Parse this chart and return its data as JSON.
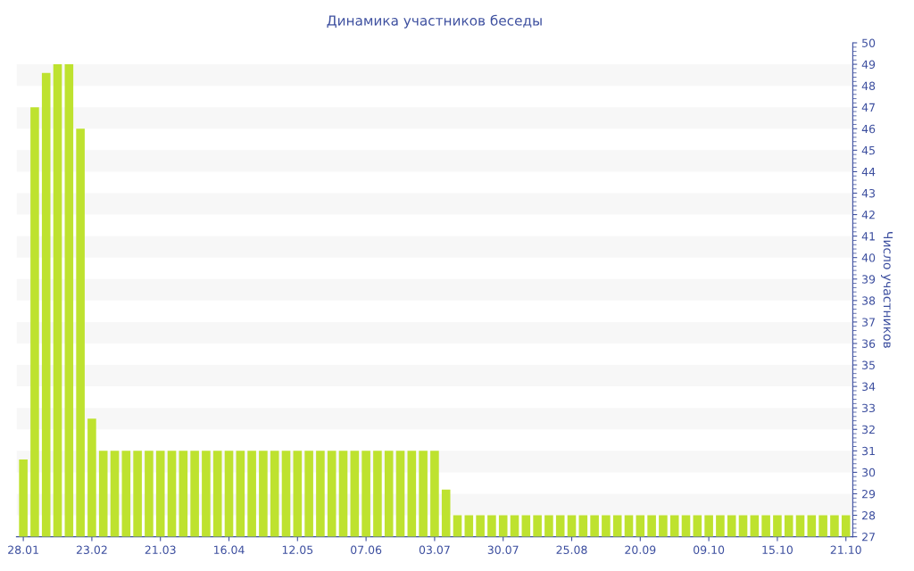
{
  "chart_data": {
    "type": "bar",
    "title": "Динамика участников беседы",
    "ylabel": "Число участников",
    "categories": [
      "28.01",
      null,
      null,
      null,
      null,
      null,
      "23.02",
      null,
      null,
      null,
      null,
      null,
      "21.03",
      null,
      null,
      null,
      null,
      null,
      "16.04",
      null,
      null,
      null,
      null,
      null,
      "12.05",
      null,
      null,
      null,
      null,
      null,
      "07.06",
      null,
      null,
      null,
      null,
      null,
      "03.07",
      null,
      null,
      null,
      null,
      null,
      "30.07",
      null,
      null,
      null,
      null,
      null,
      "25.08",
      null,
      null,
      null,
      null,
      null,
      "20.09",
      null,
      null,
      null,
      null,
      null,
      "09.10",
      null,
      null,
      null,
      null,
      null,
      "15.10",
      null,
      null,
      null,
      null,
      null,
      "21.10"
    ],
    "values": [
      30.6,
      47,
      48.6,
      49,
      49,
      46,
      32.5,
      31,
      31,
      31,
      31,
      31,
      31,
      31,
      31,
      31,
      31,
      31,
      31,
      31,
      31,
      31,
      31,
      31,
      31,
      31,
      31,
      31,
      31,
      31,
      31,
      31,
      31,
      31,
      31,
      31,
      31,
      29.2,
      28,
      28,
      28,
      28,
      28,
      28,
      28,
      28,
      28,
      28,
      28,
      28,
      28,
      28,
      28,
      28,
      28,
      28,
      28,
      28,
      28,
      28,
      28,
      28,
      28,
      28,
      28,
      28,
      28,
      28,
      28,
      28,
      28,
      28,
      28
    ],
    "color": "#bee22f",
    "ylim": [
      27,
      50
    ],
    "yticks": [
      27,
      28,
      29,
      30,
      31,
      32,
      33,
      34,
      35,
      36,
      37,
      38,
      39,
      40,
      41,
      42,
      43,
      44,
      45,
      46,
      47,
      48,
      49,
      50
    ],
    "bands": [
      {
        "axis": "y",
        "from": 28,
        "to": 29,
        "color": "#f7f7f7"
      },
      {
        "axis": "y",
        "from": 30,
        "to": 31,
        "color": "#f7f7f7"
      },
      {
        "axis": "y",
        "from": 32,
        "to": 33,
        "color": "#f7f7f7"
      },
      {
        "axis": "y",
        "from": 34,
        "to": 35,
        "color": "#f7f7f7"
      },
      {
        "axis": "y",
        "from": 36,
        "to": 37,
        "color": "#f7f7f7"
      },
      {
        "axis": "y",
        "from": 38,
        "to": 39,
        "color": "#f7f7f7"
      },
      {
        "axis": "y",
        "from": 40,
        "to": 41,
        "color": "#f7f7f7"
      },
      {
        "axis": "y",
        "from": 42,
        "to": 43,
        "color": "#f7f7f7"
      },
      {
        "axis": "y",
        "from": 44,
        "to": 45,
        "color": "#f7f7f7"
      },
      {
        "axis": "y",
        "from": 46,
        "to": 47,
        "color": "#f7f7f7"
      },
      {
        "axis": "y",
        "from": 48,
        "to": 49,
        "color": "#f7f7f7"
      }
    ],
    "legend": false
  }
}
